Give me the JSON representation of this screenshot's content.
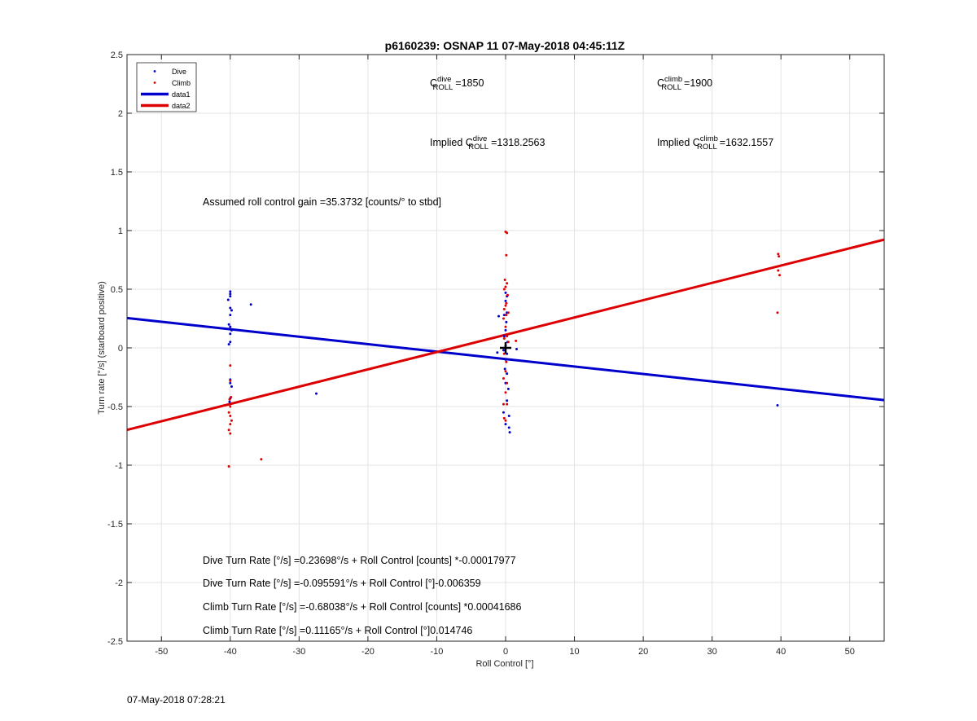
{
  "chart_data": {
    "type": "scatter",
    "title": "p6160239: OSNAP 11 07-May-2018 04:45:11Z",
    "xlabel": "Roll Control [°]",
    "ylabel": "Turn rate [°/s] (starboard positive)",
    "xlim": [
      -55,
      55
    ],
    "ylim": [
      -2.5,
      2.5
    ],
    "xticks": [
      -50,
      -40,
      -30,
      -20,
      -10,
      0,
      10,
      20,
      30,
      40,
      50
    ],
    "yticks": [
      -2.5,
      -2,
      -1.5,
      -1,
      -0.5,
      0,
      0.5,
      1,
      1.5,
      2,
      2.5
    ],
    "grid": true,
    "legend_position": "top-left",
    "series": [
      {
        "name": "Dive",
        "kind": "points",
        "color": "#0000cc",
        "points": [
          [
            -40,
            0.48
          ],
          [
            -40,
            0.46
          ],
          [
            -40,
            0.44
          ],
          [
            -40.3,
            0.41
          ],
          [
            -40,
            0.34
          ],
          [
            -39.8,
            0.32
          ],
          [
            -40,
            0.28
          ],
          [
            -40.2,
            0.2
          ],
          [
            -40,
            0.18
          ],
          [
            -39.8,
            0.15
          ],
          [
            -40,
            0.12
          ],
          [
            -40,
            0.05
          ],
          [
            -40.2,
            0.03
          ],
          [
            -40,
            -0.27
          ],
          [
            -40,
            -0.3
          ],
          [
            -39.8,
            -0.33
          ],
          [
            -40,
            -0.43
          ],
          [
            -40.1,
            -0.46
          ],
          [
            -37,
            0.37
          ],
          [
            -27.5,
            -0.39
          ],
          [
            0,
            0.47
          ],
          [
            0.2,
            0.44
          ],
          [
            0,
            0.4
          ],
          [
            0.2,
            0.3
          ],
          [
            -0.2,
            0.28
          ],
          [
            0.1,
            0.22
          ],
          [
            0,
            0.15
          ],
          [
            -0.2,
            0.1
          ],
          [
            0.3,
            0.05
          ],
          [
            0,
            0.02
          ],
          [
            -0.3,
            -0.02
          ],
          [
            0.2,
            -0.05
          ],
          [
            0,
            -0.1
          ],
          [
            -0.1,
            -0.18
          ],
          [
            0.2,
            -0.22
          ],
          [
            0,
            -0.3
          ],
          [
            0.4,
            -0.35
          ],
          [
            0.2,
            -0.45
          ],
          [
            -0.3,
            -0.55
          ],
          [
            0.5,
            -0.58
          ],
          [
            0,
            -0.65
          ],
          [
            0.5,
            -0.68
          ],
          [
            0.6,
            -0.72
          ],
          [
            -1,
            0.27
          ],
          [
            -1.2,
            -0.04
          ],
          [
            1.6,
            -0.01
          ],
          [
            39.5,
            -0.49
          ]
        ]
      },
      {
        "name": "Climb",
        "kind": "points",
        "color": "#dd0000",
        "points": [
          [
            -40,
            -0.15
          ],
          [
            -40,
            -0.28
          ],
          [
            -39.9,
            -0.42
          ],
          [
            -40.1,
            -0.44
          ],
          [
            -40,
            -0.5
          ],
          [
            -40.2,
            -0.55
          ],
          [
            -40,
            -0.58
          ],
          [
            -39.8,
            -0.62
          ],
          [
            -40,
            -0.65
          ],
          [
            -40.2,
            -0.7
          ],
          [
            -40,
            -0.73
          ],
          [
            -40.2,
            -1.01
          ],
          [
            -35.5,
            -0.95
          ],
          [
            0,
            0.99
          ],
          [
            0.2,
            0.98
          ],
          [
            0.1,
            0.79
          ],
          [
            -0.1,
            0.58
          ],
          [
            0.2,
            0.55
          ],
          [
            0,
            0.52
          ],
          [
            -0.2,
            0.5
          ],
          [
            0.3,
            0.45
          ],
          [
            0.1,
            0.38
          ],
          [
            0,
            0.36
          ],
          [
            -0.2,
            0.33
          ],
          [
            0.4,
            0.3
          ],
          [
            0.1,
            0.28
          ],
          [
            -0.3,
            0.25
          ],
          [
            0,
            0.18
          ],
          [
            0.2,
            0.1
          ],
          [
            -0.2,
            0.08
          ],
          [
            0.4,
            0.05
          ],
          [
            0,
            0.0
          ],
          [
            -0.2,
            -0.05
          ],
          [
            0.1,
            -0.12
          ],
          [
            0,
            -0.2
          ],
          [
            -0.3,
            -0.26
          ],
          [
            0.2,
            -0.3
          ],
          [
            0,
            -0.38
          ],
          [
            -0.3,
            -0.48
          ],
          [
            0.2,
            -0.48
          ],
          [
            -0.2,
            -0.6
          ],
          [
            0,
            -0.62
          ],
          [
            1.5,
            0.06
          ],
          [
            39.6,
            0.8
          ],
          [
            39.7,
            0.78
          ],
          [
            39.6,
            0.66
          ],
          [
            39.8,
            0.62
          ],
          [
            39.5,
            0.3
          ]
        ]
      },
      {
        "name": "data1",
        "kind": "line",
        "color": "#0000cc",
        "intercept": -0.095591,
        "slope": -0.006359
      },
      {
        "name": "data2",
        "kind": "line",
        "color": "#dd0000",
        "intercept": 0.11165,
        "slope": 0.014746
      }
    ],
    "marker": {
      "x": 0,
      "y": 0,
      "color": "#000000"
    },
    "annotations": {
      "c_dive": {
        "base": "C",
        "sup": "dive",
        "sub": "ROLL",
        "value": "=1850"
      },
      "c_climb": {
        "base": "C",
        "sup": "climb",
        "sub": "ROLL",
        "value": "=1900"
      },
      "implied_dive": {
        "prefix": "Implied C",
        "sup": "dive",
        "sub": "ROLL",
        "value": "=1318.2563"
      },
      "implied_climb": {
        "prefix": "Implied C",
        "sup": "climb",
        "sub": "ROLL",
        "value": "=1632.1557"
      },
      "gain": "Assumed roll control gain =35.3732 [counts/° to stbd]",
      "eq1": "Dive Turn Rate [°/s] =0.23698°/s + Roll Control [counts] *-0.00017977",
      "eq2": "Dive Turn Rate [°/s] =-0.095591°/s + Roll Control [°]-0.006359",
      "eq3": "Climb Turn Rate [°/s] =-0.68038°/s + Roll Control [counts] *0.00041686",
      "eq4": "Climb Turn Rate [°/s] =0.11165°/s + Roll Control [°]0.014746"
    }
  },
  "footer": {
    "timestamp": "07-May-2018 07:28:21"
  }
}
